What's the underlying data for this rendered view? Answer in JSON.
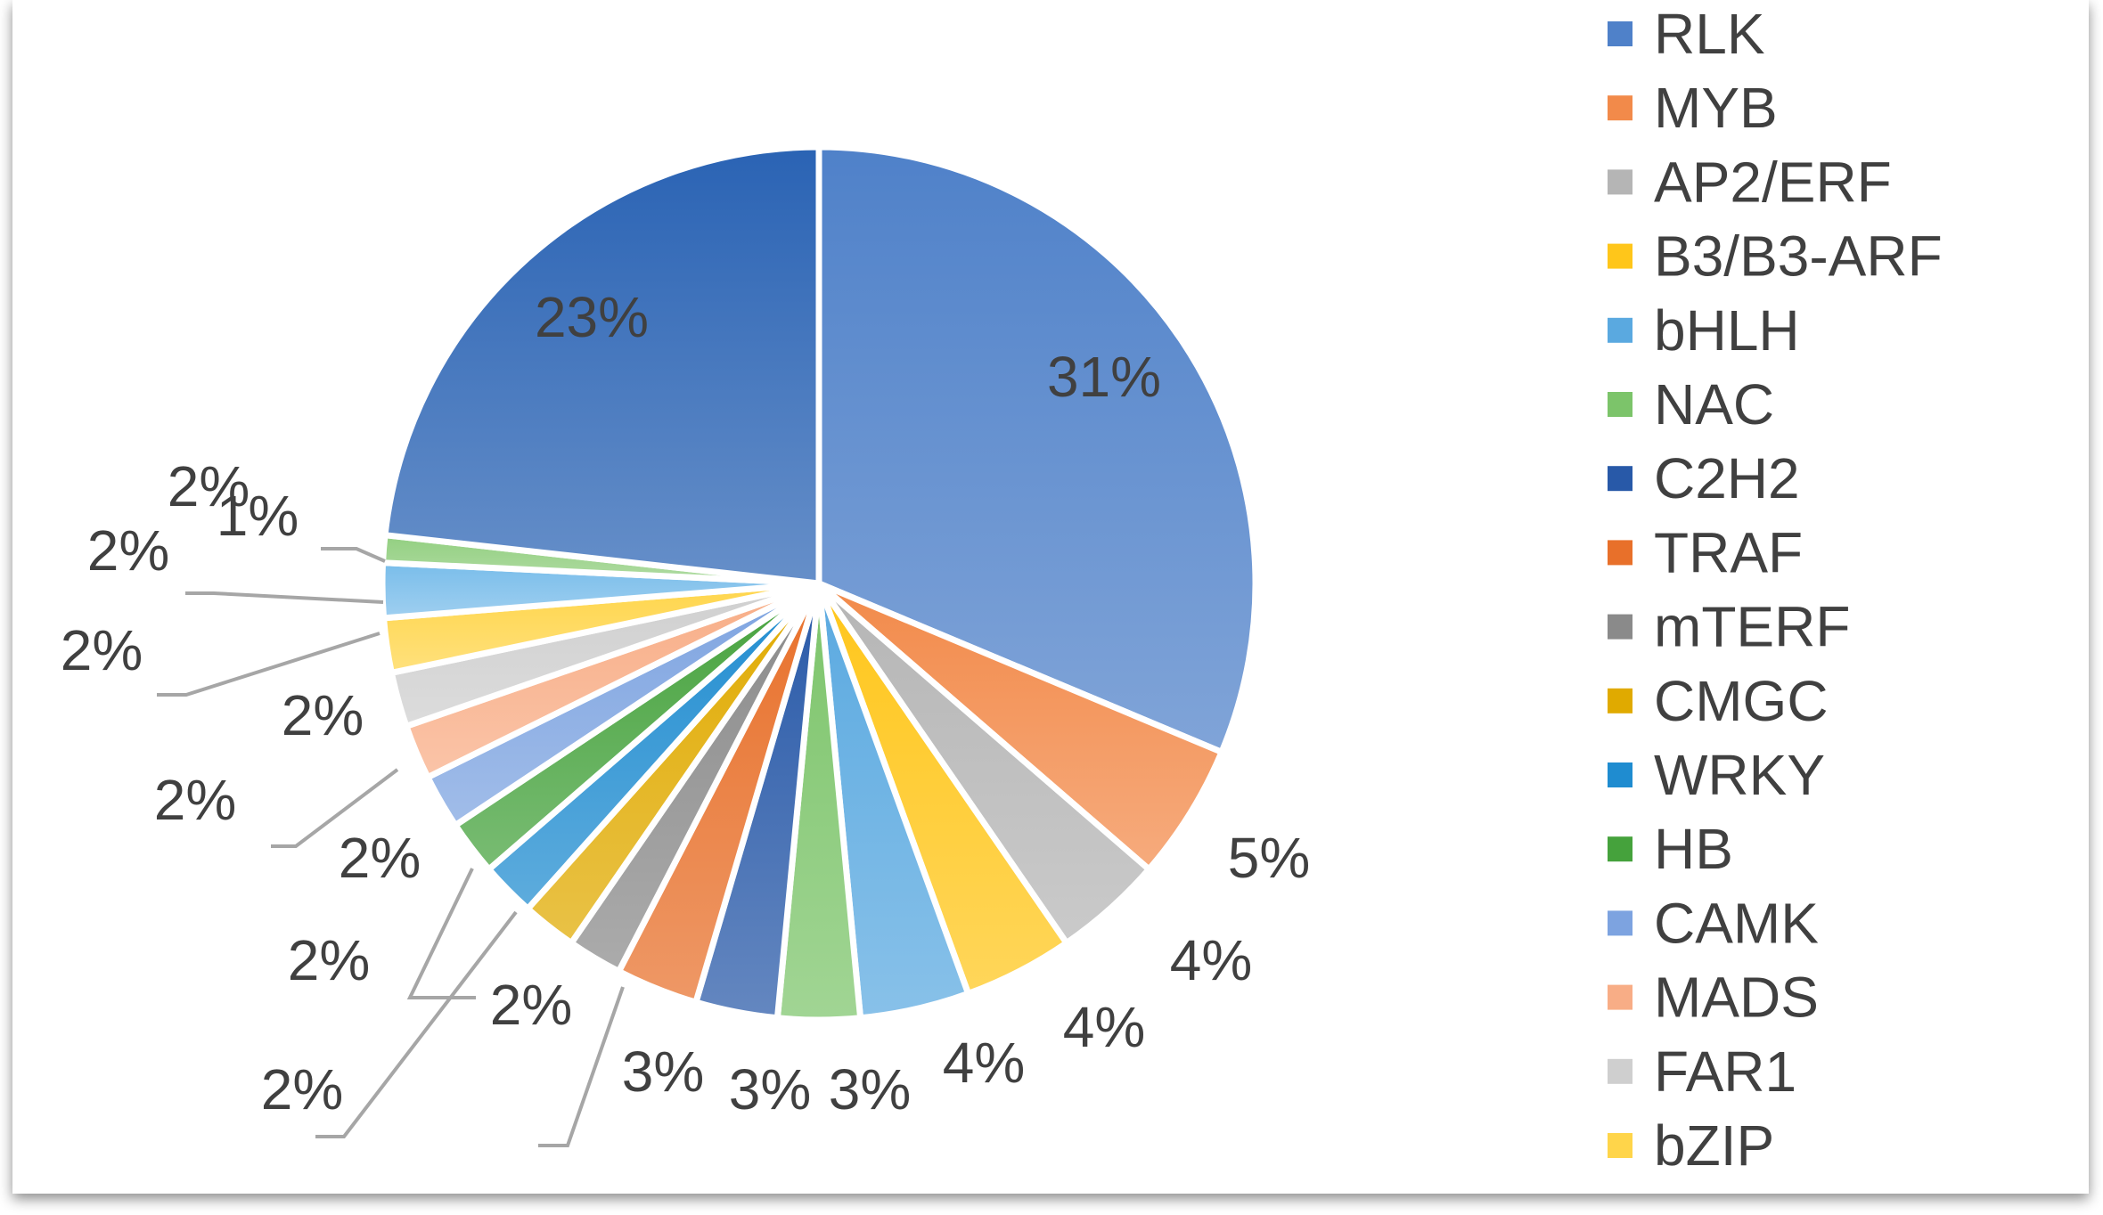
{
  "chart_data": {
    "type": "pie",
    "legend_placement": "right",
    "slices": [
      {
        "name": "RLK",
        "value": 31,
        "label": "31%",
        "color": "#4f81c9"
      },
      {
        "name": "MYB",
        "value": 5,
        "label": "5%",
        "color": "#f28a4a"
      },
      {
        "name": "AP2/ERF",
        "value": 4,
        "label": "4%",
        "color": "#b5b5b5"
      },
      {
        "name": "B3/B3-ARF",
        "value": 4,
        "label": "4%",
        "color": "#ffc61a"
      },
      {
        "name": "bHLH",
        "value": 4,
        "label": "4%",
        "color": "#5aa9e0"
      },
      {
        "name": "NAC",
        "value": 3,
        "label": "3%",
        "color": "#7cc46a"
      },
      {
        "name": "C2H2",
        "value": 3,
        "label": "3%",
        "color": "#2859a8"
      },
      {
        "name": "TRAF",
        "value": 3,
        "label": "3%",
        "color": "#e8702a"
      },
      {
        "name": "mTERF",
        "value": 2,
        "label": "2%",
        "color": "#8a8a8a"
      },
      {
        "name": "CMGC",
        "value": 2,
        "label": "2%",
        "color": "#e0aa00"
      },
      {
        "name": "WRKY",
        "value": 2,
        "label": "2%",
        "color": "#1f8cd0"
      },
      {
        "name": "HB",
        "value": 2,
        "label": "2%",
        "color": "#45a23c"
      },
      {
        "name": "CAMK",
        "value": 2,
        "label": "2%",
        "color": "#7da3e0"
      },
      {
        "name": "MADS",
        "value": 2,
        "label": "2%",
        "color": "#f8ad86"
      },
      {
        "name": "FAR1",
        "value": 2,
        "label": "2%",
        "color": "#cfcfcf"
      },
      {
        "name": "bZIP",
        "value": 2,
        "label": "2%",
        "color": "#ffd54a"
      },
      {
        "name": "",
        "value": 2,
        "label": "2%",
        "color": "#79bdea"
      },
      {
        "name": "",
        "value": 1,
        "label": "1%",
        "color": "#92cf80"
      },
      {
        "name": "",
        "value": 23,
        "label": "23%",
        "color": "#2a63b4"
      }
    ]
  }
}
